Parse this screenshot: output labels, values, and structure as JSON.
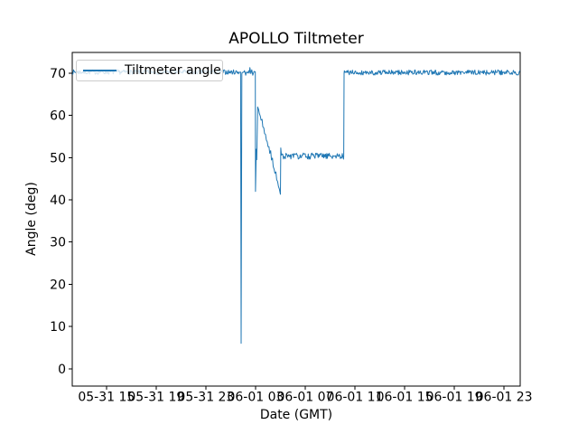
{
  "figure": {
    "background": "#ffffff",
    "text_color": "#000000"
  },
  "chart_data": {
    "type": "line",
    "title": "APOLLO Tiltmeter",
    "xlabel": "Date (GMT)",
    "ylabel": "Angle (deg)",
    "grid": false,
    "legend": {
      "position": "upper left",
      "entries": [
        "Tiltmeter angle"
      ]
    },
    "x_unit": "hours since 05-31 00:00, labels formatted MM-DD HH",
    "xlim": [
      12.25,
      48.3
    ],
    "ylim": [
      -4.1,
      74.9
    ],
    "xticks": [
      {
        "value": 15,
        "label": "05-31 15"
      },
      {
        "value": 19,
        "label": "05-31 19"
      },
      {
        "value": 23,
        "label": "05-31 23"
      },
      {
        "value": 27,
        "label": "06-01 03"
      },
      {
        "value": 31,
        "label": "06-01 07"
      },
      {
        "value": 35,
        "label": "06-01 11"
      },
      {
        "value": 39,
        "label": "06-01 15"
      },
      {
        "value": 43,
        "label": "06-01 19"
      },
      {
        "value": 47,
        "label": "06-01 23"
      }
    ],
    "yticks": [
      0,
      10,
      20,
      30,
      40,
      50,
      60,
      70
    ],
    "colors": {
      "line": "#1f77b4",
      "axes": "#000000",
      "legend_border": "#cccccc",
      "background": "#ffffff"
    },
    "series": [
      {
        "name": "Tiltmeter angle",
        "color": "#1f77b4",
        "line_width": 1,
        "description": "Flat near 70.2 deg, narrow glitch spike to ~6 deg at ~06-01 01:50, step down to ~42 then rebound to ~62 at 06-01 03:00, stair-step decline to ~41.5 by ~06-01 05:00, jump to noisy plateau ~50.3 until ~06-01 10:10, then back to ~70.1 through end",
        "segments": [
          {
            "kind": "noisy",
            "x0": 12.25,
            "x1": 25.78,
            "y": 70.25,
            "amp": 0.55,
            "pph": 20,
            "seed": 7
          },
          {
            "kind": "points",
            "pts": [
              [
                25.8,
                70.2
              ],
              [
                25.84,
                6.0
              ],
              [
                25.9,
                69.8
              ]
            ]
          },
          {
            "kind": "noisy",
            "x0": 25.92,
            "x1": 26.5,
            "y": 70.1,
            "amp": 0.7,
            "pph": 20,
            "seed": 11
          },
          {
            "kind": "points",
            "pts": [
              [
                26.55,
                71.3
              ],
              [
                26.63,
                69.9
              ],
              [
                26.7,
                70.8
              ],
              [
                26.78,
                69.5
              ],
              [
                26.88,
                70.4
              ],
              [
                26.98,
                70.3
              ]
            ]
          },
          {
            "kind": "points",
            "pts": [
              [
                27.0,
                42.0
              ],
              [
                27.06,
                52.0
              ],
              [
                27.1,
                49.5
              ],
              [
                27.17,
                62.0
              ]
            ]
          },
          {
            "kind": "stairs",
            "x0": 27.17,
            "x1": 28.98,
            "y0": 62.0,
            "y1": 41.6,
            "steps": 13,
            "jitter": 1.4,
            "seed": 23
          },
          {
            "kind": "points",
            "pts": [
              [
                29.0,
                41.3
              ],
              [
                29.03,
                52.3
              ],
              [
                29.08,
                50.6
              ]
            ]
          },
          {
            "kind": "noisy",
            "x0": 29.1,
            "x1": 34.08,
            "y": 50.35,
            "amp": 0.75,
            "pph": 20,
            "seed": 31
          },
          {
            "kind": "points",
            "pts": [
              [
                34.1,
                50.3
              ],
              [
                34.13,
                70.0
              ]
            ]
          },
          {
            "kind": "noisy",
            "x0": 34.15,
            "x1": 48.3,
            "y": 70.15,
            "amp": 0.6,
            "pph": 20,
            "seed": 41
          }
        ]
      }
    ]
  }
}
